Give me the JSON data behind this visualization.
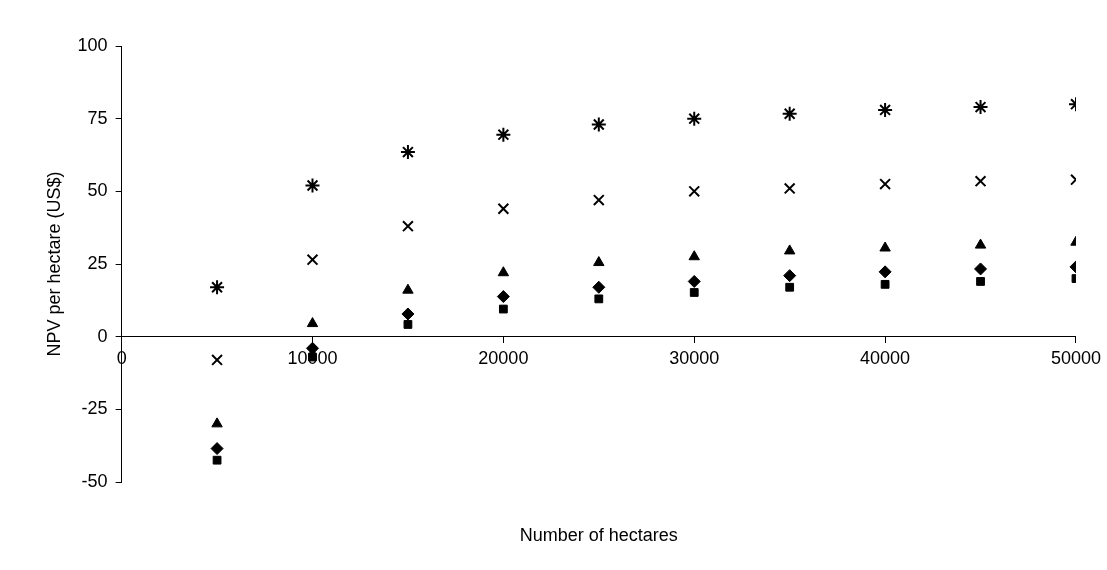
{
  "chart_data": {
    "type": "scatter",
    "xlabel": "Number of hectares",
    "ylabel": "NPV per hectare (US$)",
    "x": [
      5000,
      10000,
      15000,
      20000,
      25000,
      30000,
      35000,
      40000,
      45000,
      50000
    ],
    "xlim": [
      0,
      50000
    ],
    "xticks": [
      0,
      10000,
      20000,
      30000,
      40000,
      50000
    ],
    "ylim": [
      -50,
      100
    ],
    "yticks": [
      -50,
      -25,
      0,
      25,
      50,
      75,
      100
    ],
    "grid": false,
    "legend": false,
    "series": [
      {
        "color": "#000000",
        "values": [
          17,
          52,
          63.5,
          69.5,
          73,
          75,
          76.7,
          78,
          79,
          80
        ]
      },
      {
        "color": "#000000",
        "marker": "cross",
        "values": [
          -8,
          26.5,
          38,
          44,
          47,
          50,
          51,
          52.5,
          53.5,
          54
        ]
      },
      {
        "color": "#000000",
        "marker": "triangle",
        "values": [
          -30,
          4.5,
          16,
          22,
          25.5,
          27.5,
          29.5,
          30.5,
          31.5,
          32.5
        ]
      },
      {
        "color": "#000000",
        "marker": "diamond",
        "values": [
          -38.5,
          -4,
          7.8,
          13.8,
          17,
          19,
          21,
          22.3,
          23.3,
          24
        ]
      },
      {
        "color": "#000000",
        "marker": "square",
        "values": [
          -42.5,
          -7,
          4.2,
          9.5,
          13,
          15.2,
          17,
          18,
          19,
          20
        ]
      }
    ]
  }
}
